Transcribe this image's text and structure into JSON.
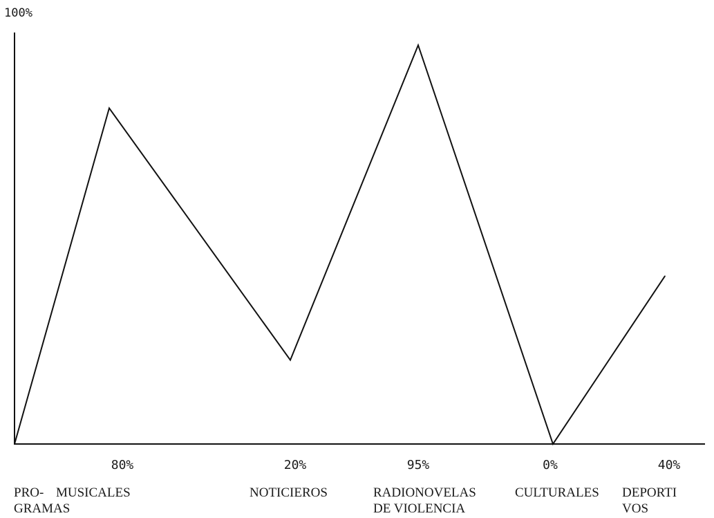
{
  "chart_data": {
    "type": "line",
    "title": "",
    "xlabel": "",
    "ylabel": "",
    "y_axis_top_label": "100%",
    "axis_title": "PRO-\nGRAMAS",
    "ylim": [
      0,
      100
    ],
    "grid": false,
    "categories": [
      {
        "label": "MUSICALES",
        "value_label": "80%"
      },
      {
        "label": "NOTICIEROS",
        "value_label": "20%"
      },
      {
        "label": "RADIONOVELAS\nDE VIOLENCIA",
        "value_label": "95%"
      },
      {
        "label": "CULTURALES",
        "value_label": "0%"
      },
      {
        "label": "DEPORTI\nVOS",
        "value_label": "40%"
      }
    ],
    "series": [
      {
        "points": [
          {
            "x": "origin",
            "y": 0
          },
          {
            "x": "MUSICALES",
            "y": 80
          },
          {
            "x": "NOTICIEROS",
            "y": 20
          },
          {
            "x": "RADIONOVELAS DE VIOLENCIA",
            "y": 95
          },
          {
            "x": "CULTURALES",
            "y": 0
          },
          {
            "x": "DEPORTIVOS",
            "y": 40
          }
        ]
      }
    ]
  }
}
